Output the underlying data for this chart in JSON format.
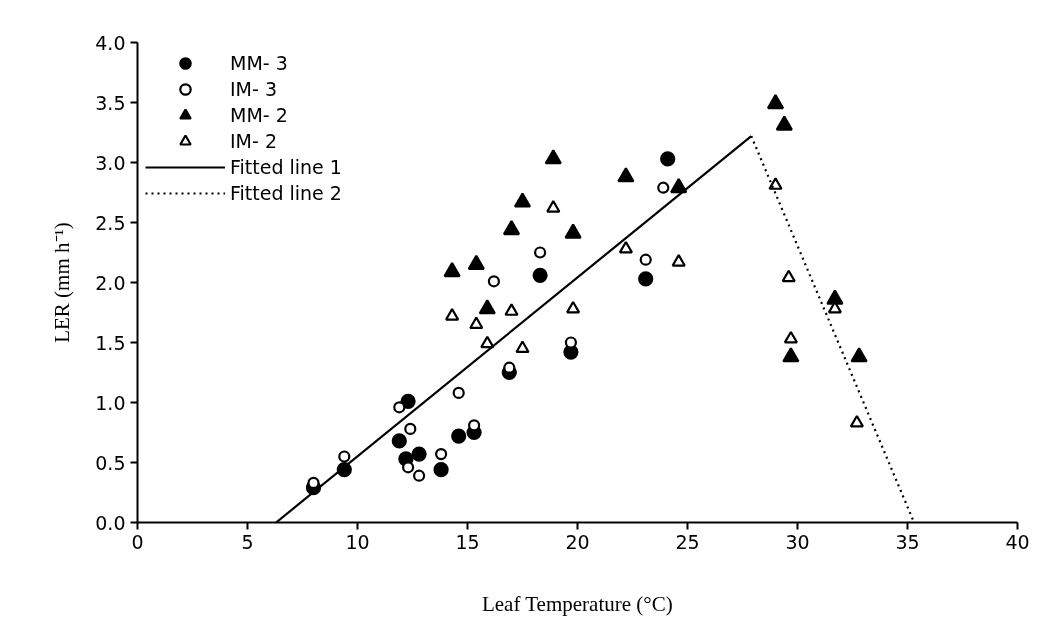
{
  "chart_data": {
    "type": "scatter",
    "xlabel": "Leaf Temperature (°C)",
    "ylabel": "LER (mm h⁻¹)",
    "xlim": [
      0,
      40
    ],
    "xticks": [
      0,
      5,
      10,
      15,
      20,
      25,
      30,
      35,
      40
    ],
    "ylim": [
      0,
      4
    ],
    "yticks": [
      {
        "value": 0,
        "label": "0.0"
      },
      {
        "value": 0.5,
        "label": "0.5"
      },
      {
        "value": 1,
        "label": "1.0"
      },
      {
        "value": 1.5,
        "label": "1.5"
      },
      {
        "value": 2,
        "label": "2.0"
      },
      {
        "value": 2.5,
        "label": "2.5"
      },
      {
        "value": 3,
        "label": "3.0"
      },
      {
        "value": 3.5,
        "label": "3.5"
      },
      {
        "value": 4,
        "label": "4.0"
      }
    ],
    "grid": false,
    "legend": "top left",
    "series": [
      {
        "name": "MM- 3",
        "marker": "circle",
        "color": "#000000",
        "x": [
          8.0,
          9.4,
          11.9,
          12.2,
          12.3,
          12.8,
          13.8,
          14.6,
          15.3,
          16.9,
          18.3,
          19.7,
          23.1,
          24.1
        ],
        "values": [
          0.29,
          0.44,
          0.68,
          0.53,
          1.01,
          0.57,
          0.44,
          0.72,
          0.75,
          1.25,
          2.06,
          1.42,
          2.03,
          3.03
        ]
      },
      {
        "name": "IM- 3",
        "marker": "circle",
        "color": "#ffffff",
        "x": [
          8.0,
          9.4,
          11.9,
          12.3,
          12.4,
          12.8,
          13.8,
          14.6,
          15.3,
          16.2,
          16.9,
          18.3,
          19.7,
          23.1,
          23.9
        ],
        "values": [
          0.33,
          0.55,
          0.96,
          0.46,
          0.78,
          0.39,
          0.57,
          1.08,
          0.81,
          2.01,
          1.29,
          2.25,
          1.5,
          2.19,
          2.79
        ]
      },
      {
        "name": "MM- 2",
        "marker": "triangle",
        "color": "#000000",
        "x": [
          14.3,
          15.4,
          15.9,
          17.0,
          17.5,
          18.9,
          19.8,
          22.2,
          24.6,
          29.0,
          29.4,
          29.7,
          31.7,
          32.8
        ],
        "values": [
          2.09,
          2.15,
          1.78,
          2.44,
          2.67,
          3.03,
          2.41,
          2.88,
          2.79,
          3.49,
          3.31,
          1.38,
          1.86,
          1.38
        ]
      },
      {
        "name": "IM- 2",
        "marker": "triangle",
        "color": "#ffffff",
        "x": [
          14.3,
          15.4,
          15.9,
          17.0,
          17.5,
          18.9,
          19.8,
          22.2,
          24.6,
          29.0,
          29.6,
          29.7,
          31.7,
          32.7
        ],
        "values": [
          1.72,
          1.65,
          1.49,
          1.76,
          1.45,
          2.62,
          1.78,
          2.28,
          2.17,
          2.81,
          2.04,
          1.53,
          1.78,
          0.83
        ]
      },
      {
        "name": "Fitted line 1",
        "type": "line",
        "line_style": "solid",
        "color": "#000000",
        "x": [
          6.3,
          27.9
        ],
        "values": [
          0,
          3.22
        ]
      },
      {
        "name": "Fitted line 2",
        "type": "line",
        "line_style": "dotted",
        "color": "#000000",
        "x": [
          27.9,
          35.3
        ],
        "values": [
          3.22,
          0
        ]
      }
    ]
  }
}
